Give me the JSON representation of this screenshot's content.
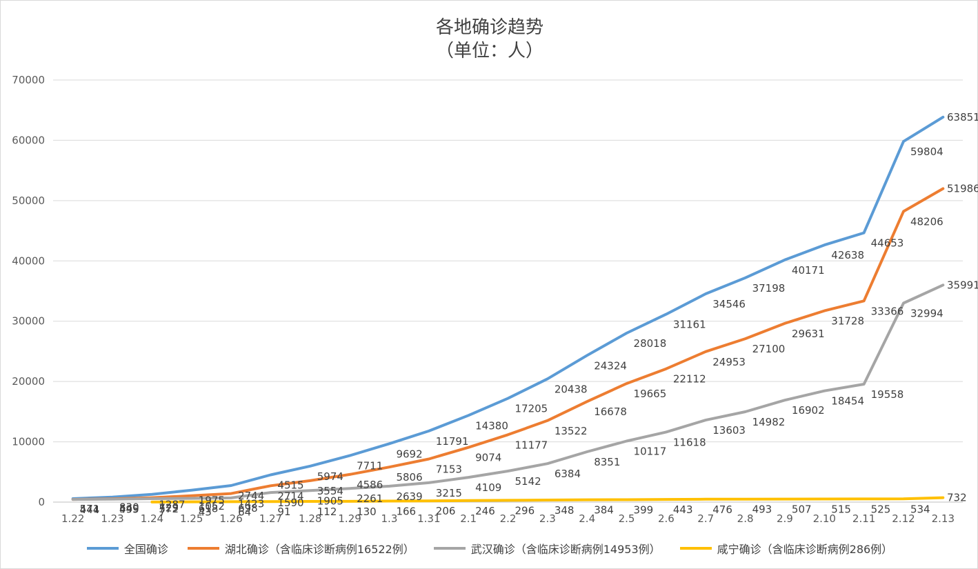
{
  "chart_data": {
    "type": "line",
    "title": "各地确诊趋势",
    "subtitle": "（单位：人）",
    "categories": [
      "1.22",
      "1.23",
      "1.24",
      "1.25",
      "1.26",
      "1.27",
      "1.28",
      "1.29",
      "1.3",
      "1.31",
      "2.1",
      "2.2",
      "2.3",
      "2.4",
      "2.5",
      "2.6",
      "2.7",
      "2.8",
      "2.9",
      "2.10",
      "2.11",
      "2.12",
      "2.13"
    ],
    "ylim": [
      0,
      70000
    ],
    "yticks": [
      "0",
      "10000",
      "20000",
      "30000",
      "40000",
      "50000",
      "60000",
      "70000"
    ],
    "grid": true,
    "legend_position": "bottom",
    "series": [
      {
        "name": "全国确诊",
        "color": "#5b9bd5",
        "values": [
          571,
          830,
          1287,
          1975,
          2744,
          4515,
          5974,
          7711,
          9692,
          11791,
          14380,
          17205,
          20438,
          24324,
          28018,
          31161,
          34546,
          37198,
          40171,
          42638,
          44653,
          59804,
          63851
        ]
      },
      {
        "name": "湖北确诊（含临床诊断病例16522例）",
        "color": "#ed7d31",
        "values": [
          444,
          549,
          729,
          1052,
          1423,
          2714,
          3554,
          4586,
          5806,
          7153,
          9074,
          11177,
          13522,
          16678,
          19665,
          22112,
          24953,
          27100,
          29631,
          31728,
          33366,
          48206,
          51986
        ]
      },
      {
        "name": "武汉确诊（含临床诊断病例14953例）",
        "color": "#a5a5a5",
        "values": [
          444,
          495,
          572,
          618,
          698,
          1590,
          1905,
          2261,
          2639,
          3215,
          4109,
          5142,
          6384,
          8351,
          10117,
          11618,
          13603,
          14982,
          16902,
          18454,
          19558,
          32994,
          35991
        ]
      },
      {
        "name": "咸宁确诊（含临床诊断病例286例）",
        "color": "#ffc000",
        "values": [
          null,
          null,
          7,
          43,
          64,
          91,
          112,
          130,
          166,
          206,
          246,
          296,
          348,
          384,
          399,
          443,
          476,
          493,
          507,
          515,
          525,
          534,
          732
        ]
      }
    ]
  }
}
